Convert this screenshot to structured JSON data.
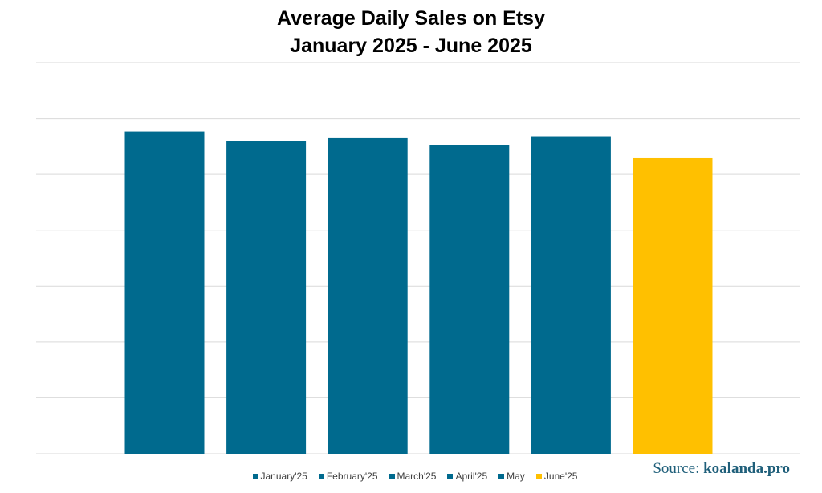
{
  "chart_data": {
    "type": "bar",
    "title_line1": "Average Daily Sales on Etsy",
    "title_line2": "January 2025 - June 2025",
    "categories": [
      "January'25",
      "February'25",
      "March'25",
      "April'25",
      "May",
      "June'25"
    ],
    "values": [
      5.77,
      5.6,
      5.65,
      5.53,
      5.67,
      5.29
    ],
    "colors": [
      "#006A8E",
      "#006A8E",
      "#006A8E",
      "#006A8E",
      "#006A8E",
      "#FFC000"
    ],
    "ylim": [
      0,
      7
    ],
    "gridlines": 7,
    "grid": true,
    "legend_position": "bottom",
    "xlabel": "",
    "ylabel": ""
  },
  "source": {
    "label": "Source:",
    "site": "koalanda.pro"
  }
}
